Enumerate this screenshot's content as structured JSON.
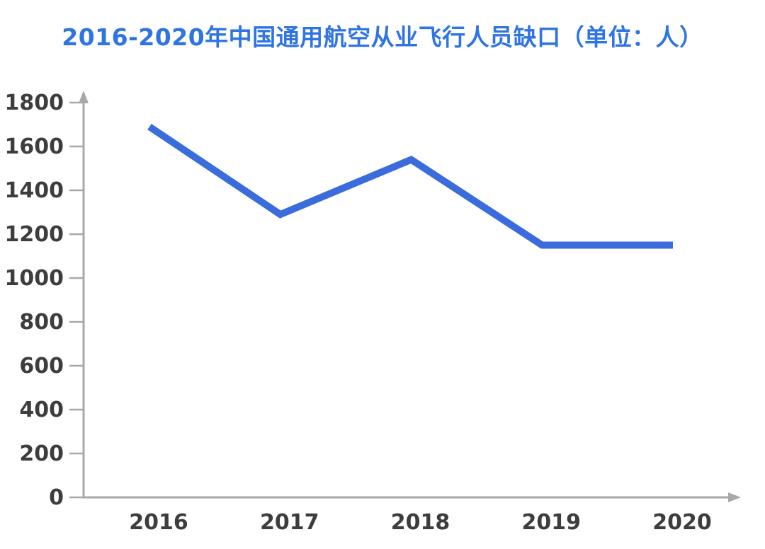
{
  "title": {
    "text": "2016-2020年中国通用航空从业飞行人员缺口（单位：人）",
    "color": "#2e74e4"
  },
  "chart_data": {
    "type": "line",
    "categories": [
      "2016",
      "2017",
      "2018",
      "2019",
      "2020"
    ],
    "values": [
      1690,
      1290,
      1540,
      1150,
      1150
    ],
    "title": "2016-2020年中国通用航空从业飞行人员缺口（单位：人）",
    "xlabel": "",
    "ylabel": "",
    "ylim": [
      0,
      1800
    ],
    "yticks": [
      0,
      200,
      400,
      600,
      800,
      1000,
      1200,
      1400,
      1600,
      1800
    ],
    "grid": false,
    "legend": "none",
    "line_color": "#3b6cdb",
    "line_width": 10,
    "axis_color": "#a8a8a8",
    "tick_label_color": "#3d3d3d",
    "background": "#ffffff"
  }
}
